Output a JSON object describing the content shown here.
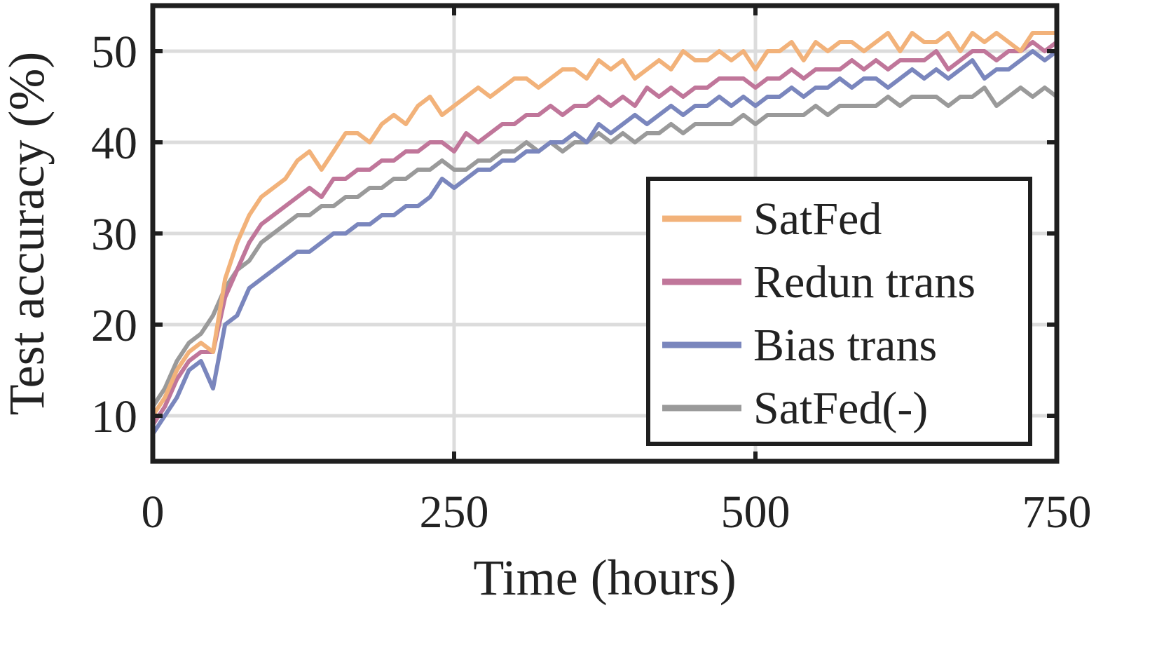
{
  "chart_data": {
    "type": "line",
    "xlabel": "Time (hours)",
    "ylabel": "Test accuracy (%)",
    "xlim": [
      0,
      750
    ],
    "ylim": [
      5,
      55
    ],
    "xticks": [
      0,
      250,
      500,
      750
    ],
    "yticks": [
      10,
      20,
      30,
      40,
      50
    ],
    "xtick_labels": [
      "0",
      "250",
      "500",
      "750"
    ],
    "ytick_labels": [
      "10",
      "20",
      "30",
      "40",
      "50"
    ],
    "grid": true,
    "legend_position": "lower-right",
    "series": [
      {
        "name": "SatFed",
        "color": "#f2b27a",
        "x": [
          0,
          10,
          20,
          30,
          40,
          50,
          60,
          70,
          80,
          90,
          100,
          110,
          120,
          130,
          140,
          150,
          160,
          170,
          180,
          190,
          200,
          210,
          220,
          230,
          240,
          250,
          260,
          270,
          280,
          290,
          300,
          310,
          320,
          330,
          340,
          350,
          360,
          370,
          380,
          390,
          400,
          410,
          420,
          430,
          440,
          450,
          460,
          470,
          480,
          490,
          500,
          510,
          520,
          530,
          540,
          550,
          560,
          570,
          580,
          590,
          600,
          610,
          620,
          630,
          640,
          650,
          660,
          670,
          680,
          690,
          700,
          710,
          720,
          730,
          740,
          750
        ],
        "y": [
          10,
          12,
          15,
          17,
          18,
          17,
          25,
          29,
          32,
          34,
          35,
          36,
          38,
          39,
          37,
          39,
          41,
          41,
          40,
          42,
          43,
          42,
          44,
          45,
          43,
          44,
          45,
          46,
          45,
          46,
          47,
          47,
          46,
          47,
          48,
          48,
          47,
          49,
          48,
          49,
          47,
          48,
          49,
          48,
          50,
          49,
          49,
          50,
          49,
          50,
          48,
          50,
          50,
          51,
          49,
          51,
          50,
          51,
          51,
          50,
          51,
          52,
          50,
          52,
          51,
          51,
          52,
          50,
          52,
          51,
          52,
          51,
          50,
          52,
          52,
          52
        ]
      },
      {
        "name": "Redun trans",
        "color": "#c0769a",
        "x": [
          0,
          10,
          20,
          30,
          40,
          50,
          60,
          70,
          80,
          90,
          100,
          110,
          120,
          130,
          140,
          150,
          160,
          170,
          180,
          190,
          200,
          210,
          220,
          230,
          240,
          250,
          260,
          270,
          280,
          290,
          300,
          310,
          320,
          330,
          340,
          350,
          360,
          370,
          380,
          390,
          400,
          410,
          420,
          430,
          440,
          450,
          460,
          470,
          480,
          490,
          500,
          510,
          520,
          530,
          540,
          550,
          560,
          570,
          580,
          590,
          600,
          610,
          620,
          630,
          640,
          650,
          660,
          670,
          680,
          690,
          700,
          710,
          720,
          730,
          740,
          750
        ],
        "y": [
          9,
          11,
          14,
          16,
          17,
          17,
          23,
          26,
          29,
          31,
          32,
          33,
          34,
          35,
          34,
          36,
          36,
          37,
          37,
          38,
          38,
          39,
          39,
          40,
          40,
          39,
          41,
          40,
          41,
          42,
          42,
          43,
          43,
          44,
          43,
          44,
          44,
          45,
          44,
          45,
          44,
          46,
          45,
          46,
          45,
          46,
          46,
          47,
          47,
          47,
          46,
          47,
          47,
          48,
          47,
          48,
          48,
          48,
          49,
          48,
          49,
          48,
          49,
          49,
          49,
          50,
          48,
          49,
          50,
          50,
          49,
          50,
          50,
          51,
          50,
          51
        ]
      },
      {
        "name": "Bias trans",
        "color": "#7a86bd",
        "x": [
          0,
          10,
          20,
          30,
          40,
          50,
          60,
          70,
          80,
          90,
          100,
          110,
          120,
          130,
          140,
          150,
          160,
          170,
          180,
          190,
          200,
          210,
          220,
          230,
          240,
          250,
          260,
          270,
          280,
          290,
          300,
          310,
          320,
          330,
          340,
          350,
          360,
          370,
          380,
          390,
          400,
          410,
          420,
          430,
          440,
          450,
          460,
          470,
          480,
          490,
          500,
          510,
          520,
          530,
          540,
          550,
          560,
          570,
          580,
          590,
          600,
          610,
          620,
          630,
          640,
          650,
          660,
          670,
          680,
          690,
          700,
          710,
          720,
          730,
          740,
          750
        ],
        "y": [
          8,
          10,
          12,
          15,
          16,
          13,
          20,
          21,
          24,
          25,
          26,
          27,
          28,
          28,
          29,
          30,
          30,
          31,
          31,
          32,
          32,
          33,
          33,
          34,
          36,
          35,
          36,
          37,
          37,
          38,
          38,
          39,
          39,
          40,
          40,
          41,
          40,
          42,
          41,
          42,
          43,
          42,
          43,
          44,
          43,
          44,
          44,
          45,
          44,
          45,
          44,
          45,
          45,
          46,
          45,
          46,
          46,
          47,
          46,
          47,
          47,
          46,
          47,
          48,
          47,
          48,
          47,
          48,
          49,
          47,
          48,
          48,
          49,
          50,
          49,
          50
        ]
      },
      {
        "name": "SatFed(-)",
        "color": "#9a9a9a",
        "x": [
          0,
          10,
          20,
          30,
          40,
          50,
          60,
          70,
          80,
          90,
          100,
          110,
          120,
          130,
          140,
          150,
          160,
          170,
          180,
          190,
          200,
          210,
          220,
          230,
          240,
          250,
          260,
          270,
          280,
          290,
          300,
          310,
          320,
          330,
          340,
          350,
          360,
          370,
          380,
          390,
          400,
          410,
          420,
          430,
          440,
          450,
          460,
          470,
          480,
          490,
          500,
          510,
          520,
          530,
          540,
          550,
          560,
          570,
          580,
          590,
          600,
          610,
          620,
          630,
          640,
          650,
          660,
          670,
          680,
          690,
          700,
          710,
          720,
          730,
          740,
          750
        ],
        "y": [
          11,
          13,
          16,
          18,
          19,
          21,
          24,
          26,
          27,
          29,
          30,
          31,
          32,
          32,
          33,
          33,
          34,
          34,
          35,
          35,
          36,
          36,
          37,
          37,
          38,
          37,
          37,
          38,
          38,
          39,
          39,
          40,
          39,
          40,
          39,
          40,
          40,
          41,
          40,
          41,
          40,
          41,
          41,
          42,
          41,
          42,
          42,
          42,
          42,
          43,
          42,
          43,
          43,
          43,
          43,
          44,
          43,
          44,
          44,
          44,
          44,
          45,
          44,
          45,
          45,
          45,
          44,
          45,
          45,
          46,
          44,
          45,
          46,
          45,
          46,
          45
        ]
      }
    ]
  }
}
